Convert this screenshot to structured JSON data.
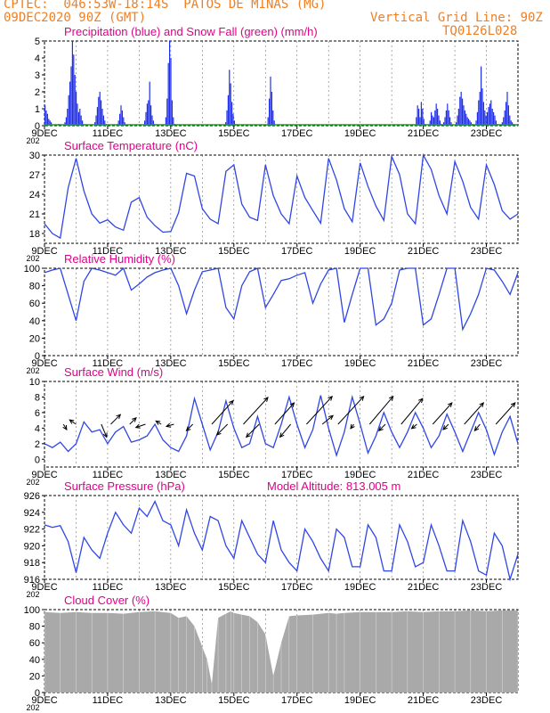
{
  "header": {
    "line1": "CPTEC:  046:53W-18:14S  PATOS DE MINAS (MG)",
    "line2": "09DEC2020 90Z (GMT)",
    "grid_note": "Vertical Grid Line: 90Z",
    "code": "TQ0126L028",
    "model_altitude": "Model Altitude: 813.005 m"
  },
  "colors": {
    "header": "#f07f24",
    "title": "#e0008a",
    "precip": "#1f2ee8",
    "snow": "#18a818",
    "line": "#2f46e6",
    "arrow": "#000000",
    "cloud": "#a9a9a9"
  },
  "x_axis": {
    "ticks": [
      "9DEC",
      "11DEC",
      "13DEC",
      "15DEC",
      "17DEC",
      "19DEC",
      "21DEC",
      "23DEC"
    ],
    "cut_label": "202"
  },
  "chart_data": [
    {
      "id": "precip",
      "type": "bar",
      "title": "Precipitation (blue) and Snow Fall (green) (mm/h)",
      "yticks": [
        "0",
        "1",
        "2",
        "3",
        "4",
        "5"
      ],
      "ylim": [
        0,
        5
      ],
      "series": [
        {
          "name": "Precipitation",
          "values": [
            1.2,
            0.9,
            0.7,
            0.4,
            0.3,
            0.2,
            0.0,
            0.0,
            0.0,
            0.0,
            0.0,
            0.1,
            0.0,
            0.0,
            0.0,
            0.0,
            0.2,
            0.5,
            1.0,
            1.8,
            2.6,
            3.5,
            5.0,
            4.2,
            3.0,
            2.0,
            1.3,
            0.8,
            1.0,
            0.6,
            0.3,
            0.1,
            0.0,
            0.0,
            0.0,
            0.0,
            0.0,
            0.0,
            0.0,
            0.0,
            0.2,
            0.6,
            1.1,
            1.7,
            2.0,
            1.5,
            1.0,
            0.6,
            0.3,
            0.1,
            0.0,
            0.0,
            0.0,
            0.0,
            0.0,
            0.0,
            0.0,
            0.0,
            0.1,
            0.3,
            0.7,
            1.2,
            0.9,
            0.5,
            0.2,
            0.0,
            0.0,
            0.0,
            0.0,
            0.0,
            0.0,
            0.0,
            0.0,
            0.0,
            0.0,
            0.0,
            0.0,
            0.0,
            0.0,
            0.0,
            0.3,
            0.8,
            1.3,
            1.5,
            2.6,
            1.2,
            0.6,
            0.3,
            0.1,
            0.0,
            0.0,
            0.0,
            0.0,
            0.0,
            0.0,
            0.0,
            0.0,
            0.5,
            1.6,
            3.7,
            5.0,
            4.0,
            1.5,
            0.5,
            0.1,
            0.0,
            0.0,
            0.0,
            0.0,
            0.0,
            0.0,
            0.0,
            0.0,
            0.0,
            0.0,
            0.0,
            0.0,
            0.0,
            0.0,
            0.0,
            0.0,
            0.0,
            0.0,
            0.0,
            0.0,
            0.0,
            0.0,
            0.0,
            0.0,
            0.0,
            0.0,
            0.0,
            0.0,
            0.0,
            0.0,
            0.0,
            0.0,
            0.0,
            0.0,
            0.0,
            0.0,
            0.0,
            0.0,
            0.0,
            0.0,
            0.2,
            0.9,
            1.8,
            3.3,
            2.5,
            1.4,
            0.7,
            0.3,
            0.1,
            0.0,
            0.0,
            0.0,
            0.0,
            0.0,
            0.0,
            0.0,
            0.0,
            0.0,
            0.0,
            0.0,
            0.0,
            0.0,
            0.0,
            0.0,
            0.0,
            0.0,
            0.0,
            0.0,
            0.0,
            0.0,
            0.0,
            0.0,
            0.0,
            0.0,
            0.5,
            1.6,
            2.9,
            2.0,
            0.9,
            0.3,
            0.0,
            0.0,
            0.0,
            0.0,
            0.0,
            0.0,
            0.0,
            0.0,
            0.0,
            0.0,
            0.0,
            0.0,
            0.0,
            0.0,
            0.0,
            0.0,
            0.0,
            0.0,
            0.0,
            0.0,
            0.0,
            0.0,
            0.0,
            0.0,
            0.0,
            0.0,
            0.0,
            0.0,
            0.0,
            0.0,
            0.0,
            0.0,
            0.0,
            0.0,
            0.0,
            0.0,
            0.0,
            0.0,
            0.0,
            0.0,
            0.0,
            0.0,
            0.0,
            0.0,
            0.0,
            0.0,
            0.0,
            0.0,
            0.0,
            0.0,
            0.0,
            0.0,
            0.0,
            0.0,
            0.0,
            0.0,
            0.0,
            0.0,
            0.0,
            0.0,
            0.0,
            0.0,
            0.0,
            0.0,
            0.0,
            0.0,
            0.0,
            0.0,
            0.0,
            0.0,
            0.0,
            0.0,
            0.0,
            0.0,
            0.0,
            0.0,
            0.0,
            0.0,
            0.0,
            0.0,
            0.0,
            0.0,
            0.0,
            0.0,
            0.0,
            0.0,
            0.0,
            0.0,
            0.0,
            0.0,
            0.0,
            0.0,
            0.0,
            0.0,
            0.0,
            0.0,
            0.0,
            0.0,
            0.0,
            0.0,
            0.0,
            0.0,
            0.0,
            0.0,
            0.0,
            0.0,
            0.0,
            0.0,
            0.0,
            0.0,
            0.0,
            0.0,
            0.0,
            0.5,
            1.2,
            1.0,
            0.5,
            1.4,
            1.0,
            0.4,
            0.1,
            0.0,
            0.0,
            0.0,
            0.3,
            0.8,
            0.6,
            0.5,
            0.9,
            1.3,
            1.0,
            0.6,
            0.3,
            0.1,
            0.0,
            0.2,
            0.5,
            0.9,
            1.3,
            0.9,
            0.5,
            0.2,
            0.0,
            0.0,
            0.0,
            0.2,
            0.6,
            1.0,
            1.7,
            2.0,
            1.6,
            1.2,
            0.9,
            0.7,
            0.5,
            0.4,
            0.3,
            0.2,
            0.1,
            0.0,
            0.0,
            0.3,
            0.8,
            1.5,
            2.0,
            3.5,
            2.2,
            1.4,
            0.9,
            0.6,
            0.8,
            1.1,
            1.3,
            1.5,
            1.0,
            0.8,
            0.6,
            0.3,
            0.1,
            0.0,
            0.0,
            0.0,
            0.2,
            0.5,
            0.9,
            1.4,
            2.0,
            1.2,
            0.6,
            0.3,
            0.2,
            0.1,
            0.0,
            0.0,
            0.0
          ]
        },
        {
          "name": "Snow Fall",
          "values": []
        }
      ]
    },
    {
      "id": "temperature",
      "type": "line",
      "title": "Surface Temperature (nC)",
      "yticks": [
        "18",
        "21",
        "24",
        "27",
        "30"
      ],
      "ylim": [
        16.5,
        30
      ],
      "x_days": [
        0,
        0.25,
        0.5,
        0.75,
        1,
        1.25,
        1.5,
        1.75,
        2,
        2.25,
        2.5,
        2.75,
        3,
        3.25,
        3.5,
        3.75,
        4,
        4.25,
        4.5,
        4.75,
        5,
        5.25,
        5.5,
        5.75,
        6,
        6.25,
        6.5,
        6.75,
        7,
        7.25,
        7.5,
        7.75,
        8,
        8.25,
        8.5,
        8.75,
        9,
        9.25,
        9.5,
        9.75,
        10,
        10.25,
        10.5,
        10.75,
        11,
        11.25,
        11.5,
        11.75,
        12,
        12.25,
        12.5,
        12.75,
        13,
        13.25,
        13.5,
        13.75,
        14,
        14.25,
        14.5,
        14.75,
        15
      ],
      "values": [
        19.5,
        18.0,
        17.3,
        25.0,
        29.5,
        24.5,
        21.0,
        19.6,
        20.1,
        19.0,
        18.5,
        22.8,
        23.5,
        20.5,
        19.2,
        18.2,
        18.3,
        21.2,
        27.2,
        26.8,
        21.8,
        20.2,
        19.5,
        27.5,
        28.5,
        22.5,
        20.5,
        20.0,
        28.5,
        23.8,
        21.0,
        19.5,
        26.8,
        23.5,
        21.5,
        19.6,
        29.5,
        26.2,
        21.8,
        19.8,
        28.8,
        25.2,
        22.2,
        20.0,
        29.8,
        27.0,
        21.0,
        19.5,
        30.0,
        27.8,
        23.8,
        21.0,
        29.0,
        26.0,
        22.0,
        20.2,
        28.5,
        25.5,
        21.5,
        20.2,
        21.0
      ]
    },
    {
      "id": "humidity",
      "type": "line",
      "title": "Relative Humidity (%)",
      "yticks": [
        "0",
        "20",
        "40",
        "60",
        "80",
        "100"
      ],
      "ylim": [
        0,
        100
      ],
      "x_days": [
        0,
        0.25,
        0.5,
        0.75,
        1,
        1.25,
        1.5,
        1.75,
        2,
        2.25,
        2.5,
        2.75,
        3,
        3.25,
        3.5,
        3.75,
        4,
        4.25,
        4.5,
        4.75,
        5,
        5.25,
        5.5,
        5.75,
        6,
        6.25,
        6.5,
        6.75,
        7,
        7.25,
        7.5,
        7.75,
        8,
        8.25,
        8.5,
        8.75,
        9,
        9.25,
        9.5,
        9.75,
        10,
        10.25,
        10.5,
        10.75,
        11,
        11.25,
        11.5,
        11.75,
        12,
        12.25,
        12.5,
        12.75,
        13,
        13.25,
        13.5,
        13.75,
        14,
        14.25,
        14.5,
        14.75,
        15
      ],
      "values": [
        95,
        98,
        100,
        70,
        40,
        85,
        100,
        98,
        95,
        92,
        100,
        75,
        82,
        90,
        95,
        98,
        100,
        80,
        48,
        75,
        96,
        98,
        100,
        55,
        42,
        80,
        96,
        100,
        55,
        70,
        86,
        88,
        92,
        95,
        60,
        82,
        98,
        100,
        38,
        70,
        100,
        100,
        35,
        42,
        60,
        98,
        100,
        100,
        35,
        42,
        70,
        100,
        100,
        30,
        48,
        70,
        100,
        98,
        85,
        70,
        95
      ]
    },
    {
      "id": "wind",
      "type": "line",
      "title": "Surface Wind (m/s)",
      "yticks": [
        "0",
        "2",
        "4",
        "6",
        "8",
        "10"
      ],
      "ylim": [
        -1,
        10
      ],
      "x_days": [
        0,
        0.25,
        0.5,
        0.75,
        1,
        1.25,
        1.5,
        1.75,
        2,
        2.25,
        2.5,
        2.75,
        3,
        3.25,
        3.5,
        3.75,
        4,
        4.25,
        4.5,
        4.75,
        5,
        5.25,
        5.5,
        5.75,
        6,
        6.25,
        6.5,
        6.75,
        7,
        7.25,
        7.5,
        7.75,
        8,
        8.25,
        8.5,
        8.75,
        9,
        9.25,
        9.5,
        9.75,
        10,
        10.25,
        10.5,
        10.75,
        11,
        11.25,
        11.5,
        11.75,
        12,
        12.25,
        12.5,
        12.75,
        13,
        13.25,
        13.5,
        13.75,
        14,
        14.25,
        14.5,
        14.75,
        15
      ],
      "values": [
        2.0,
        1.5,
        2.2,
        1.0,
        2.0,
        4.8,
        3.5,
        3.8,
        2.0,
        3.5,
        4.2,
        2.2,
        2.5,
        3.0,
        4.5,
        2.5,
        1.5,
        1.0,
        3.0,
        7.8,
        4.5,
        1.2,
        3.5,
        7.5,
        4.0,
        1.5,
        2.0,
        5.5,
        2.0,
        1.5,
        4.5,
        8.0,
        4.5,
        1.5,
        3.8,
        8.2,
        4.0,
        0.5,
        3.5,
        8.0,
        4.5,
        0.8,
        3.0,
        6.0,
        3.5,
        1.5,
        3.5,
        6.0,
        4.0,
        1.5,
        3.0,
        5.8,
        3.5,
        1.0,
        3.5,
        6.0,
        3.8,
        0.6,
        3.5,
        5.5,
        2.0
      ],
      "vectors": [
        {
          "t": 0.6,
          "u": 0.3,
          "v": -0.5
        },
        {
          "t": 1.0,
          "u": -0.6,
          "v": 0.4
        },
        {
          "t": 1.8,
          "u": 0.5,
          "v": -1.2
        },
        {
          "t": 2.1,
          "u": 0.9,
          "v": 0.9
        },
        {
          "t": 2.7,
          "u": 0.6,
          "v": 0.6
        },
        {
          "t": 3.2,
          "u": -0.9,
          "v": -0.3
        },
        {
          "t": 3.7,
          "u": -0.5,
          "v": 0.3
        },
        {
          "t": 4.1,
          "u": -0.7,
          "v": -0.2
        },
        {
          "t": 4.7,
          "u": -0.6,
          "v": -0.6
        },
        {
          "t": 5.3,
          "u": 2.0,
          "v": 2.2
        },
        {
          "t": 5.8,
          "u": -1.0,
          "v": -1.0
        },
        {
          "t": 6.3,
          "u": 2.3,
          "v": 2.5
        },
        {
          "t": 6.8,
          "u": -1.2,
          "v": -1.2
        },
        {
          "t": 7.3,
          "u": 1.8,
          "v": 2.0
        },
        {
          "t": 7.8,
          "u": -1.0,
          "v": -1.2
        },
        {
          "t": 8.3,
          "u": 2.4,
          "v": 2.6
        },
        {
          "t": 8.8,
          "u": 1.0,
          "v": 0.8
        },
        {
          "t": 9.3,
          "u": 2.4,
          "v": 2.6
        },
        {
          "t": 9.8,
          "u": -0.3,
          "v": -0.4
        },
        {
          "t": 10.3,
          "u": 2.2,
          "v": 2.6
        },
        {
          "t": 10.8,
          "u": -0.6,
          "v": -0.6
        },
        {
          "t": 11.3,
          "u": 2.0,
          "v": 2.4
        },
        {
          "t": 11.8,
          "u": -0.5,
          "v": -0.4
        },
        {
          "t": 12.3,
          "u": 1.8,
          "v": 2.0
        },
        {
          "t": 12.8,
          "u": -0.5,
          "v": -0.5
        },
        {
          "t": 13.3,
          "u": 1.8,
          "v": 2.0
        },
        {
          "t": 13.8,
          "u": -0.5,
          "v": -0.6
        },
        {
          "t": 14.3,
          "u": 1.8,
          "v": 2.0
        }
      ]
    },
    {
      "id": "pressure",
      "type": "line",
      "title": "Surface Pressure (hPa)",
      "yticks": [
        "916",
        "918",
        "920",
        "922",
        "924",
        "926"
      ],
      "ylim": [
        916,
        926
      ],
      "x_days": [
        0,
        0.25,
        0.5,
        0.75,
        1,
        1.25,
        1.5,
        1.75,
        2,
        2.25,
        2.5,
        2.75,
        3,
        3.25,
        3.5,
        3.75,
        4,
        4.25,
        4.5,
        4.75,
        5,
        5.25,
        5.5,
        5.75,
        6,
        6.25,
        6.5,
        6.75,
        7,
        7.25,
        7.5,
        7.75,
        8,
        8.25,
        8.5,
        8.75,
        9,
        9.25,
        9.5,
        9.75,
        10,
        10.25,
        10.5,
        10.75,
        11,
        11.25,
        11.5,
        11.75,
        12,
        12.25,
        12.5,
        12.75,
        13,
        13.25,
        13.5,
        13.75,
        14,
        14.25,
        14.5,
        14.75,
        15
      ],
      "values": [
        922.5,
        922.2,
        922.4,
        920.5,
        916.8,
        921.0,
        919.5,
        918.5,
        921.5,
        924.0,
        922.5,
        921.5,
        924.5,
        923.5,
        925.3,
        923.0,
        922.5,
        920.0,
        924.3,
        921.5,
        919.5,
        923.5,
        923.0,
        920.0,
        918.5,
        923.0,
        921.0,
        919.0,
        918.0,
        923.0,
        919.5,
        918.0,
        917.0,
        922.0,
        920.5,
        918.5,
        917.0,
        922.0,
        921.0,
        917.5,
        917.5,
        922.5,
        921.0,
        917.0,
        917.0,
        922.5,
        920.5,
        917.5,
        918.0,
        922.5,
        920.0,
        917.0,
        917.0,
        923.0,
        920.5,
        917.0,
        916.5,
        921.5,
        920.0,
        916.0,
        919.0
      ]
    },
    {
      "id": "cloud",
      "type": "bar",
      "title": "Cloud Cover (%)",
      "yticks": [
        "0",
        "20",
        "40",
        "60",
        "80",
        "100"
      ],
      "ylim": [
        0,
        100
      ],
      "x_days": [
        0,
        0.5,
        1,
        1.5,
        2,
        2.5,
        3,
        3.5,
        4,
        4.25,
        4.5,
        4.75,
        5,
        5.15,
        5.3,
        5.5,
        5.75,
        5.9,
        6,
        6.25,
        6.5,
        6.75,
        7,
        7.25,
        7.5,
        7.75,
        8,
        8.5,
        9,
        9.25,
        9.5,
        10,
        10.5,
        11,
        11.5,
        12,
        12.5,
        13,
        13.5,
        14,
        14.5,
        15
      ],
      "values": [
        97,
        96,
        97,
        96,
        96,
        95,
        97,
        98,
        96,
        90,
        92,
        80,
        55,
        40,
        10,
        90,
        95,
        98,
        96,
        94,
        92,
        85,
        70,
        20,
        60,
        92,
        93,
        94,
        96,
        95,
        96,
        97,
        97,
        97,
        98,
        97,
        98,
        98,
        99,
        98,
        99,
        99
      ]
    }
  ]
}
